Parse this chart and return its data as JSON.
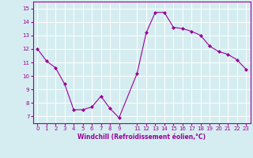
{
  "x": [
    0,
    1,
    2,
    3,
    4,
    5,
    6,
    7,
    8,
    9,
    11,
    12,
    13,
    14,
    15,
    16,
    17,
    18,
    19,
    20,
    21,
    22,
    23
  ],
  "y": [
    12.0,
    11.1,
    10.6,
    9.4,
    7.5,
    7.5,
    7.7,
    8.5,
    7.6,
    6.9,
    10.2,
    13.2,
    14.7,
    14.7,
    13.6,
    13.5,
    13.3,
    13.0,
    12.2,
    11.8,
    11.6,
    11.2,
    10.5
  ],
  "line_color": "#990099",
  "marker": "D",
  "marker_size": 2.0,
  "bg_color": "#d5edf0",
  "grid_color": "#ffffff",
  "xlabel": "Windchill (Refroidissement éolien,°C)",
  "xlabel_color": "#990099",
  "tick_color": "#990099",
  "spine_color": "#990099",
  "ylim": [
    6.5,
    15.5
  ],
  "xlim": [
    -0.5,
    23.5
  ],
  "yticks": [
    7,
    8,
    9,
    10,
    11,
    12,
    13,
    14,
    15
  ],
  "xticks": [
    0,
    1,
    2,
    3,
    4,
    5,
    6,
    7,
    8,
    9,
    11,
    12,
    13,
    14,
    15,
    16,
    17,
    18,
    19,
    20,
    21,
    22,
    23
  ],
  "tick_fontsize": 5.0,
  "xlabel_fontsize": 5.5
}
